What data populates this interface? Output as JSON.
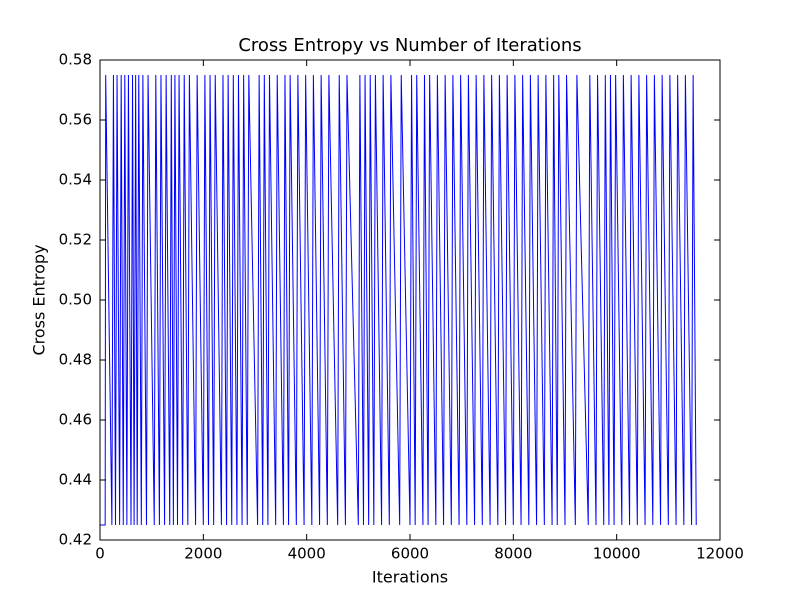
{
  "chart_data": {
    "type": "line",
    "title": "Cross Entropy vs Number of Iterations",
    "x_label": "Iterations",
    "y_label": "Cross Entropy",
    "color": "#0000ff",
    "xlim": [
      0,
      12000
    ],
    "ylim": [
      0.42,
      0.58
    ],
    "xticks": [
      0,
      2000,
      4000,
      6000,
      8000,
      10000,
      12000
    ],
    "yticks": [
      0.42,
      0.44,
      0.46,
      0.48,
      {
        "value": 0.5,
        "label": "0.50"
      },
      0.52,
      0.54,
      0.56,
      0.58
    ],
    "x": [
      0,
      100,
      110,
      230,
      260,
      300,
      330,
      380,
      410,
      450,
      480,
      520,
      550,
      600,
      630,
      660,
      690,
      720,
      750,
      800,
      830,
      900,
      930,
      1050,
      1080,
      1150,
      1180,
      1250,
      1280,
      1350,
      1380,
      1420,
      1450,
      1500,
      1530,
      1600,
      1630,
      1700,
      1730,
      1850,
      1880,
      2000,
      2030,
      2100,
      2130,
      2200,
      2230,
      2350,
      2380,
      2450,
      2480,
      2550,
      2580,
      2650,
      2680,
      2750,
      2780,
      2850,
      2880,
      3050,
      3080,
      3150,
      3180,
      3250,
      3280,
      3400,
      3430,
      3550,
      3580,
      3650,
      3680,
      3800,
      3830,
      3950,
      3980,
      4100,
      4130,
      4250,
      4280,
      4400,
      4430,
      4600,
      4630,
      4750,
      4780,
      5000,
      5030,
      5100,
      5130,
      5200,
      5230,
      5300,
      5330,
      5450,
      5480,
      5600,
      5630,
      5800,
      5830,
      6000,
      6030,
      6100,
      6130,
      6250,
      6280,
      6350,
      6380,
      6500,
      6530,
      6650,
      6680,
      6800,
      6830,
      6950,
      6980,
      7100,
      7130,
      7250,
      7280,
      7400,
      7430,
      7550,
      7580,
      7700,
      7730,
      7850,
      7880,
      8000,
      8030,
      8150,
      8180,
      8300,
      8330,
      8450,
      8480,
      8600,
      8630,
      8750,
      8780,
      8850,
      8880,
      9000,
      9030,
      9200,
      9230,
      9450,
      9480,
      9600,
      9630,
      9750,
      9780,
      9850,
      9880,
      9950,
      9980,
      10100,
      10130,
      10250,
      10280,
      10400,
      10430,
      10550,
      10580,
      10700,
      10730,
      10850,
      10880,
      11000,
      11030,
      11150,
      11180,
      11300,
      11330,
      11450,
      11480,
      11540
    ],
    "values": [
      0.425,
      0.425,
      0.575,
      0.425,
      0.575,
      0.425,
      0.575,
      0.425,
      0.575,
      0.425,
      0.575,
      0.425,
      0.575,
      0.425,
      0.575,
      0.425,
      0.575,
      0.425,
      0.575,
      0.425,
      0.575,
      0.425,
      0.575,
      0.425,
      0.575,
      0.425,
      0.575,
      0.425,
      0.575,
      0.425,
      0.575,
      0.425,
      0.575,
      0.425,
      0.575,
      0.425,
      0.575,
      0.425,
      0.575,
      0.425,
      0.575,
      0.425,
      0.575,
      0.425,
      0.575,
      0.425,
      0.575,
      0.425,
      0.575,
      0.425,
      0.575,
      0.425,
      0.575,
      0.425,
      0.575,
      0.425,
      0.575,
      0.425,
      0.575,
      0.425,
      0.575,
      0.425,
      0.575,
      0.425,
      0.575,
      0.425,
      0.575,
      0.425,
      0.575,
      0.425,
      0.575,
      0.425,
      0.575,
      0.425,
      0.575,
      0.425,
      0.575,
      0.425,
      0.575,
      0.425,
      0.575,
      0.425,
      0.575,
      0.425,
      0.575,
      0.425,
      0.575,
      0.425,
      0.575,
      0.425,
      0.575,
      0.425,
      0.575,
      0.425,
      0.575,
      0.425,
      0.575,
      0.425,
      0.575,
      0.425,
      0.575,
      0.425,
      0.575,
      0.425,
      0.575,
      0.425,
      0.575,
      0.425,
      0.575,
      0.425,
      0.575,
      0.425,
      0.575,
      0.425,
      0.575,
      0.425,
      0.575,
      0.425,
      0.575,
      0.425,
      0.575,
      0.425,
      0.575,
      0.425,
      0.575,
      0.425,
      0.575,
      0.425,
      0.575,
      0.425,
      0.575,
      0.425,
      0.575,
      0.425,
      0.575,
      0.425,
      0.575,
      0.425,
      0.575,
      0.425,
      0.575,
      0.425,
      0.575,
      0.425,
      0.575,
      0.425,
      0.575,
      0.425,
      0.575,
      0.425,
      0.575,
      0.425,
      0.575,
      0.425,
      0.575,
      0.425,
      0.575,
      0.425,
      0.575,
      0.425,
      0.575,
      0.425,
      0.575,
      0.425,
      0.575,
      0.425,
      0.575,
      0.425,
      0.575,
      0.425,
      0.575,
      0.425,
      0.575,
      0.425,
      0.575,
      0.425
    ]
  }
}
